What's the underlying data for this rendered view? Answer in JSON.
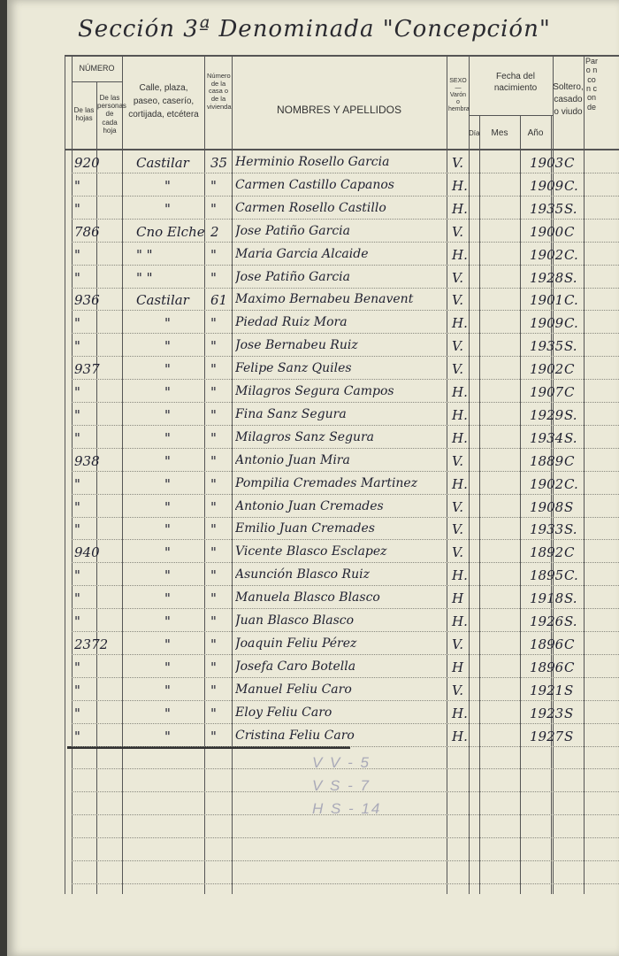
{
  "title": "Sección 3ª Denominada \"Concepción\"",
  "headers": {
    "numero": "NÚMERO",
    "de_las_hojas": "De las hojas",
    "de_las_personas": "De las personas de cada hoja",
    "calle": "Calle, plaza, paseo, caserío, cortijada, etcétera",
    "numero_casa": "Número de la casa o de la vivienda",
    "nombres": "NOMBRES Y APELLIDOS",
    "sexo": "SEXO — Varón o hembra",
    "fecha": "Fecha del nacimiento",
    "dia": "Día",
    "mes": "Mes",
    "anio": "Año",
    "estado": "Soltero, casado o viudo",
    "cut_column": "Par o n con con de"
  },
  "rows": [
    {
      "hoja": "920",
      "calle": "Castilar",
      "casa": "35",
      "nombre": "Herminio Rosello Garcia",
      "sexo": "V.",
      "anio": "1903",
      "estado": "C"
    },
    {
      "hoja": "\"",
      "calle": "\"",
      "casa": "\"",
      "nombre": "Carmen Castillo Capanos",
      "sexo": "H.",
      "anio": "1909",
      "estado": "C."
    },
    {
      "hoja": "\"",
      "calle": "\"",
      "casa": "\"",
      "nombre": "Carmen Rosello Castillo",
      "sexo": "H.",
      "anio": "1935",
      "estado": "S."
    },
    {
      "hoja": "786",
      "calle": "Cno Elche",
      "casa": "2",
      "nombre": "Jose Patiño Garcia",
      "sexo": "V.",
      "anio": "1900",
      "estado": "C"
    },
    {
      "hoja": "\"",
      "calle": "\"  \"",
      "casa": "\"",
      "nombre": "Maria Garcia Alcaide",
      "sexo": "H.",
      "anio": "1902",
      "estado": "C."
    },
    {
      "hoja": "\"",
      "calle": "\"  \"",
      "casa": "\"",
      "nombre": "Jose Patiño Garcia",
      "sexo": "V.",
      "anio": "1928",
      "estado": "S."
    },
    {
      "hoja": "936",
      "calle": "Castilar",
      "casa": "61",
      "nombre": "Maximo Bernabeu Benavent",
      "sexo": "V.",
      "anio": "1901",
      "estado": "C."
    },
    {
      "hoja": "\"",
      "calle": "\"",
      "casa": "\"",
      "nombre": "Piedad Ruiz Mora",
      "sexo": "H.",
      "anio": "1909",
      "estado": "C."
    },
    {
      "hoja": "\"",
      "calle": "\"",
      "casa": "\"",
      "nombre": "Jose Bernabeu Ruiz",
      "sexo": "V.",
      "anio": "1935",
      "estado": "S."
    },
    {
      "hoja": "937",
      "calle": "\"",
      "casa": "\"",
      "nombre": "Felipe Sanz Quiles",
      "sexo": "V.",
      "anio": "1902",
      "estado": "C"
    },
    {
      "hoja": "\"",
      "calle": "\"",
      "casa": "\"",
      "nombre": "Milagros Segura Campos",
      "sexo": "H.",
      "anio": "1907",
      "estado": "C"
    },
    {
      "hoja": "\"",
      "calle": "\"",
      "casa": "\"",
      "nombre": "Fina Sanz Segura",
      "sexo": "H.",
      "anio": "1929",
      "estado": "S."
    },
    {
      "hoja": "\"",
      "calle": "\"",
      "casa": "\"",
      "nombre": "Milagros Sanz Segura",
      "sexo": "H.",
      "anio": "1934",
      "estado": "S."
    },
    {
      "hoja": "938",
      "calle": "\"",
      "casa": "\"",
      "nombre": "Antonio Juan Mira",
      "sexo": "V.",
      "anio": "1889",
      "estado": "C"
    },
    {
      "hoja": "\"",
      "calle": "\"",
      "casa": "\"",
      "nombre": "Pompilia Cremades Martinez",
      "sexo": "H.",
      "anio": "1902",
      "estado": "C."
    },
    {
      "hoja": "\"",
      "calle": "\"",
      "casa": "\"",
      "nombre": "Antonio Juan Cremades",
      "sexo": "V.",
      "anio": "1908",
      "estado": "S"
    },
    {
      "hoja": "\"",
      "calle": "\"",
      "casa": "\"",
      "nombre": "Emilio Juan Cremades",
      "sexo": "V.",
      "anio": "1933",
      "estado": "S."
    },
    {
      "hoja": "940",
      "calle": "\"",
      "casa": "\"",
      "nombre": "Vicente Blasco Esclapez",
      "sexo": "V.",
      "anio": "1892",
      "estado": "C"
    },
    {
      "hoja": "\"",
      "calle": "\"",
      "casa": "\"",
      "nombre": "Asunción Blasco Ruiz",
      "sexo": "H.",
      "anio": "1895",
      "estado": "C."
    },
    {
      "hoja": "\"",
      "calle": "\"",
      "casa": "\"",
      "nombre": "Manuela Blasco Blasco",
      "sexo": "H",
      "anio": "1918",
      "estado": "S."
    },
    {
      "hoja": "\"",
      "calle": "\"",
      "casa": "\"",
      "nombre": "Juan Blasco Blasco",
      "sexo": "H.",
      "anio": "1926",
      "estado": "S."
    },
    {
      "hoja": "2372",
      "calle": "\"",
      "casa": "\"",
      "nombre": "Joaquin Feliu Pérez",
      "sexo": "V.",
      "anio": "1896",
      "estado": "C"
    },
    {
      "hoja": "\"",
      "calle": "\"",
      "casa": "\"",
      "nombre": "Josefa Caro Botella",
      "sexo": "H",
      "anio": "1896",
      "estado": "C"
    },
    {
      "hoja": "\"",
      "calle": "\"",
      "casa": "\"",
      "nombre": "Manuel Feliu Caro",
      "sexo": "V.",
      "anio": "1921",
      "estado": "S"
    },
    {
      "hoja": "\"",
      "calle": "\"",
      "casa": "\"",
      "nombre": "Eloy Feliu Caro",
      "sexo": "H.",
      "anio": "1923",
      "estado": "S"
    },
    {
      "hoja": "\"",
      "calle": "\"",
      "casa": "\"",
      "nombre": "Cristina Feliu Caro",
      "sexo": "H.",
      "anio": "1927",
      "estado": "S"
    }
  ],
  "pencil_notes": [
    "V V - 5",
    "V S - 7",
    "H S - 14"
  ],
  "colors": {
    "paper": "#ebe9d8",
    "ink": "#1f2030",
    "rule": "#555555",
    "pencil": "#a9a9b8"
  }
}
